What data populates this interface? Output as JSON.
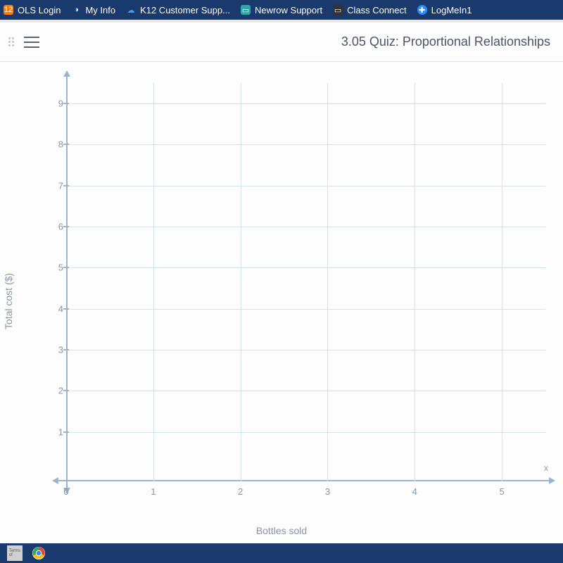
{
  "bookmarks": [
    {
      "label": "OLS Login",
      "icon_text": "12",
      "icon_bg": "#ff7a00",
      "icon_color": "#ffffff"
    },
    {
      "label": "My Info",
      "icon_text": "◑",
      "icon_bg": "transparent",
      "icon_color": "#ffffff"
    },
    {
      "label": "K12 Customer Supp...",
      "icon_text": "☁",
      "icon_bg": "transparent",
      "icon_color": "#3aa0ff"
    },
    {
      "label": "Newrow Support",
      "icon_text": "▭",
      "icon_bg": "#2aa8a8",
      "icon_color": "#ffffff"
    },
    {
      "label": "Class Connect",
      "icon_text": "▭",
      "icon_bg": "#333333",
      "icon_color": "#ffffff"
    },
    {
      "label": "LogMeIn1",
      "icon_text": "✚",
      "icon_bg": "#2a8cff",
      "icon_color": "#ffffff",
      "icon_round": true
    }
  ],
  "header": {
    "title": "3.05 Quiz: Proportional Relationships"
  },
  "chart": {
    "type": "empty-grid",
    "xlabel": "Bottles sold",
    "ylabel": "Total cost ($)",
    "x_axis_letter": "x",
    "xlim": [
      0,
      5.5
    ],
    "ylim": [
      0,
      9.5
    ],
    "xticks": [
      0,
      1,
      2,
      3,
      4,
      5
    ],
    "yticks": [
      1,
      2,
      3,
      4,
      5,
      6,
      7,
      8,
      9
    ],
    "origin_label": "0",
    "axis_color": "#9db4d0",
    "grid_color": "#d6e4f0",
    "label_color": "#8a94a6",
    "background_color": "#fdfdfd",
    "label_fontsize": 14,
    "tick_fontsize": 13
  },
  "taskbar": {
    "items": [
      "terms",
      "chrome"
    ]
  }
}
